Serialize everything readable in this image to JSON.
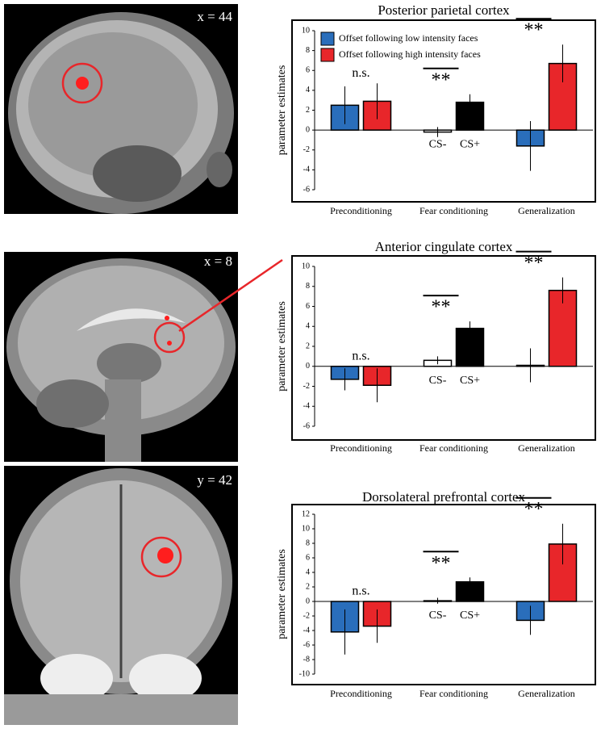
{
  "chart_data": [
    {
      "type": "bar",
      "title": "Posterior parietal cortex",
      "slice_label": "x = 44",
      "y_label": "parameter estimates",
      "categories": [
        "Preconditioning",
        "Fear conditioning",
        "Generalization"
      ],
      "series": [
        {
          "name": "Offset following low intensity faces",
          "color": "#2a6ebb",
          "colors": [
            "#2a6ebb",
            "#ffffff",
            "#2a6ebb"
          ],
          "values": [
            2.5,
            -0.2,
            -1.6
          ],
          "errors": [
            1.9,
            0.5,
            2.5
          ]
        },
        {
          "name": "Offset following high intensity faces",
          "color": "#e8262a",
          "colors": [
            "#e8262a",
            "#000000",
            "#e8262a"
          ],
          "values": [
            2.9,
            2.8,
            6.7
          ],
          "errors": [
            1.8,
            0.8,
            1.9
          ]
        }
      ],
      "significance": [
        "n.s.",
        "**",
        "**"
      ],
      "bar_labels": [
        null,
        [
          "CS-",
          "CS+"
        ],
        null
      ],
      "ylim": [
        -6,
        10
      ],
      "yticks": [
        -6,
        -4,
        -2,
        0,
        2,
        4,
        6,
        8,
        10
      ],
      "legend": "upper-left"
    },
    {
      "type": "bar",
      "title": "Anterior cingulate cortex",
      "slice_label": "x = 8",
      "y_label": "parameter estimates",
      "categories": [
        "Preconditioning",
        "Fear conditioning",
        "Generalization"
      ],
      "series": [
        {
          "color": "#2a6ebb",
          "colors": [
            "#2a6ebb",
            "#ffffff",
            "#2a6ebb"
          ],
          "values": [
            -1.3,
            0.6,
            0.1
          ],
          "errors": [
            1.1,
            0.4,
            1.7
          ]
        },
        {
          "color": "#e8262a",
          "colors": [
            "#e8262a",
            "#000000",
            "#e8262a"
          ],
          "values": [
            -1.9,
            3.8,
            7.6
          ],
          "errors": [
            1.7,
            0.7,
            1.3
          ]
        }
      ],
      "significance": [
        "n.s.",
        "**",
        "**"
      ],
      "bar_labels": [
        null,
        [
          "CS-",
          "CS+"
        ],
        null
      ],
      "ylim": [
        -6,
        10
      ],
      "yticks": [
        -6,
        -4,
        -2,
        0,
        2,
        4,
        6,
        8,
        10
      ]
    },
    {
      "type": "bar",
      "title": "Dorsolateral prefrontal cortex",
      "slice_label": "y = 42",
      "y_label": "parameter estimates",
      "categories": [
        "Preconditioning",
        "Fear conditioning",
        "Generalization"
      ],
      "series": [
        {
          "color": "#2a6ebb",
          "colors": [
            "#2a6ebb",
            "#ffffff",
            "#2a6ebb"
          ],
          "values": [
            -4.2,
            0.1,
            -2.6
          ],
          "errors": [
            3.1,
            0.4,
            2.0
          ]
        },
        {
          "color": "#e8262a",
          "colors": [
            "#e8262a",
            "#000000",
            "#e8262a"
          ],
          "values": [
            -3.4,
            2.7,
            7.9
          ],
          "errors": [
            2.3,
            0.6,
            2.8
          ]
        }
      ],
      "significance": [
        "n.s.",
        "**",
        "**"
      ],
      "bar_labels": [
        null,
        [
          "CS-",
          "CS+"
        ],
        null
      ],
      "ylim": [
        -10,
        12
      ],
      "yticks": [
        -10,
        -8,
        -6,
        -4,
        -2,
        0,
        2,
        4,
        6,
        8,
        10,
        12
      ]
    }
  ]
}
